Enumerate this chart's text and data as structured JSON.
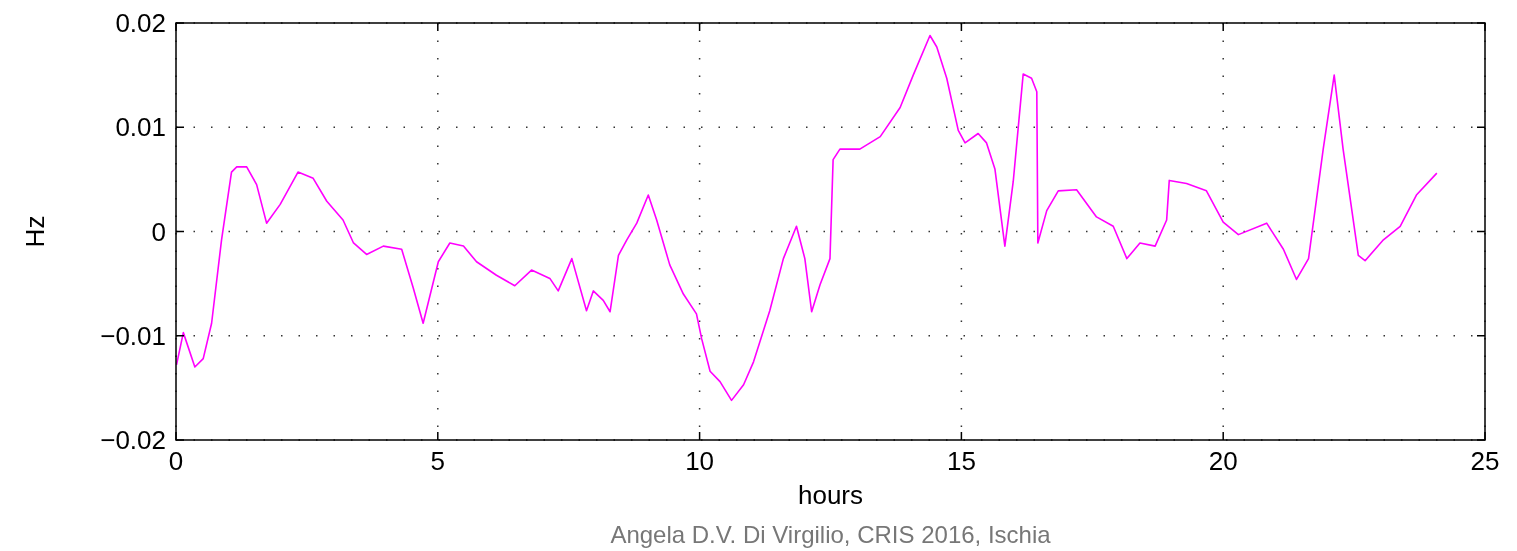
{
  "chart_data": {
    "type": "line",
    "xlabel": "hours",
    "ylabel": "Hz",
    "annotations": [
      "Angela D.V. Di Virgilio, CRIS 2016, Ischia"
    ],
    "xlim": [
      0,
      25
    ],
    "xticks": [
      0,
      5,
      10,
      15,
      20,
      25
    ],
    "ylim": [
      -0.02,
      0.02
    ],
    "yticks": [
      {
        "value": -0.02,
        "label": "−0.02"
      },
      {
        "value": -0.01,
        "label": "−0.01"
      },
      0,
      0.01,
      0.02
    ],
    "grid": true,
    "line_style": "solid",
    "marker": "none",
    "series": [
      {
        "color": "#ff00ff",
        "x": [
          0.01,
          0.14,
          0.36,
          0.52,
          0.68,
          0.87,
          1.06,
          1.16,
          1.35,
          1.54,
          1.73,
          1.99,
          2.33,
          2.62,
          2.88,
          3.19,
          3.39,
          3.64,
          3.96,
          4.31,
          4.53,
          4.72,
          5.01,
          5.23,
          5.49,
          5.74,
          6.12,
          6.47,
          6.79,
          7.14,
          7.3,
          7.56,
          7.84,
          7.97,
          8.16,
          8.29,
          8.45,
          8.61,
          8.8,
          9.02,
          9.18,
          9.43,
          9.69,
          9.94,
          10.04,
          10.2,
          10.39,
          10.61,
          10.84,
          11.03,
          11.34,
          11.6,
          11.85,
          12.01,
          12.14,
          12.3,
          12.49,
          12.55,
          12.68,
          13.06,
          13.45,
          13.83,
          14.08,
          14.4,
          14.53,
          14.72,
          14.94,
          15.07,
          15.32,
          15.48,
          15.64,
          15.83,
          15.99,
          16.18,
          16.34,
          16.44,
          16.46,
          16.63,
          16.85,
          17.2,
          17.58,
          17.9,
          18.16,
          18.41,
          18.7,
          18.92,
          18.97,
          19.3,
          19.68,
          20.0,
          20.29,
          20.83,
          21.15,
          21.4,
          21.63,
          21.91,
          22.12,
          22.29,
          22.58,
          22.71,
          23.06,
          23.38,
          23.69,
          24.08
        ],
        "values": [
          -0.0128,
          -0.0097,
          -0.013,
          -0.0122,
          -0.0088,
          -0.0008,
          0.0057,
          0.0062,
          0.0062,
          0.0045,
          0.0008,
          0.0026,
          0.0057,
          0.0051,
          0.0029,
          0.0011,
          -0.0011,
          -0.0022,
          -0.0014,
          -0.0017,
          -0.0054,
          -0.0088,
          -0.0029,
          -0.0011,
          -0.0014,
          -0.0029,
          -0.0042,
          -0.0052,
          -0.0037,
          -0.0045,
          -0.0057,
          -0.0026,
          -0.0076,
          -0.0057,
          -0.0066,
          -0.0077,
          -0.0023,
          -0.0008,
          0.0008,
          0.0035,
          0.0011,
          -0.0032,
          -0.006,
          -0.0079,
          -0.0103,
          -0.0134,
          -0.0144,
          -0.0162,
          -0.0147,
          -0.0125,
          -0.0076,
          -0.0026,
          0.0005,
          -0.0026,
          -0.0077,
          -0.0051,
          -0.0026,
          0.0069,
          0.0079,
          0.0079,
          0.0091,
          0.0119,
          0.015,
          0.0188,
          0.0177,
          0.0147,
          0.0097,
          0.0085,
          0.0094,
          0.0085,
          0.006,
          -0.0014,
          0.0048,
          0.0151,
          0.0147,
          0.0134,
          -0.0011,
          0.002,
          0.0039,
          0.004,
          0.0014,
          0.0005,
          -0.0026,
          -0.0011,
          -0.0014,
          0.0011,
          0.0049,
          0.0046,
          0.0039,
          0.0009,
          -0.0003,
          0.0008,
          -0.0017,
          -0.0046,
          -0.0026,
          0.0079,
          0.015,
          0.0079,
          -0.0023,
          -0.0028,
          -0.0008,
          0.0005,
          0.0035,
          0.0056
        ]
      }
    ]
  }
}
